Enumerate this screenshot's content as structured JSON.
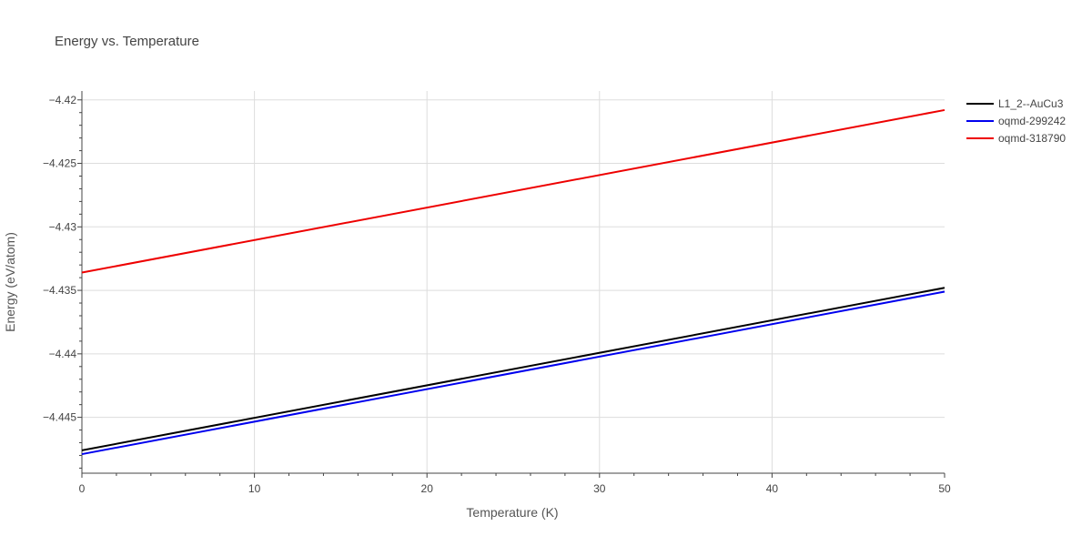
{
  "chart_data": {
    "type": "line",
    "title": "Energy vs. Temperature",
    "xlabel": "Temperature (K)",
    "ylabel": "Energy (eV/atom)",
    "xlim": [
      0,
      50
    ],
    "ylim": [
      -4.4494,
      -4.4193
    ],
    "x_ticks": [
      0,
      10,
      20,
      30,
      40,
      50
    ],
    "y_ticks": [
      -4.445,
      -4.44,
      -4.435,
      -4.43,
      -4.425,
      -4.42
    ],
    "y_tick_labels": [
      "−4.445",
      "−4.44",
      "−4.435",
      "−4.43",
      "−4.425",
      "−4.42"
    ],
    "grid": true,
    "legend_position": "top-right",
    "series": [
      {
        "name": "L1_2--AuCu3",
        "color": "#000000",
        "x": [
          0,
          50
        ],
        "y": [
          -4.4476,
          -4.4348
        ]
      },
      {
        "name": "oqmd-299242",
        "color": "#0000ee",
        "x": [
          0,
          50
        ],
        "y": [
          -4.4479,
          -4.4351
        ]
      },
      {
        "name": "oqmd-318790",
        "color": "#ee0000",
        "x": [
          0,
          50
        ],
        "y": [
          -4.4336,
          -4.4208
        ]
      }
    ]
  }
}
